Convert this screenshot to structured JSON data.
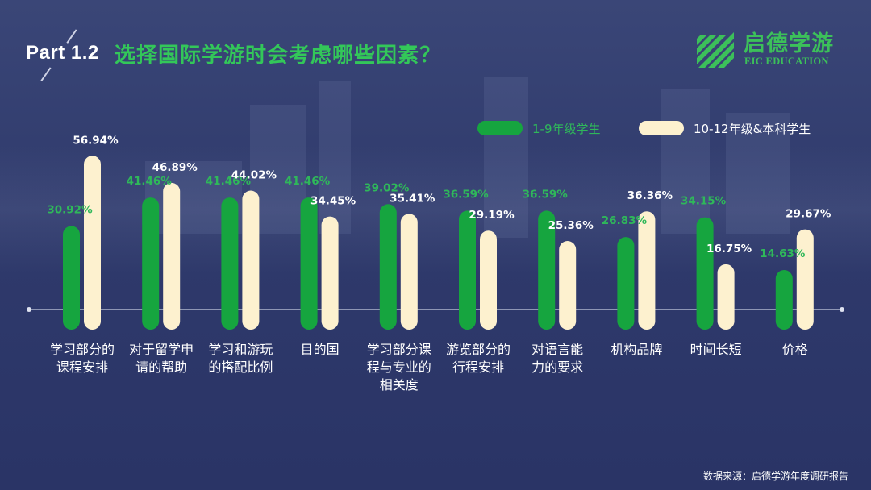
{
  "header": {
    "part": "Part 1.2",
    "title": "选择国际学游时会考虑哪些因素？"
  },
  "logo": {
    "name_cn": "启德学游",
    "name_en": "EIC EDUCATION",
    "icon": "eic-leaf-icon"
  },
  "colors": {
    "series1": "#16a53f",
    "series2": "#fdf1cf",
    "label1": "#2fb85a",
    "label2": "#ffffff",
    "title": "#33c759"
  },
  "legend": [
    {
      "label": "1-9年级学生"
    },
    {
      "label": "10-12年级&本科学生"
    }
  ],
  "chart_data": {
    "type": "bar",
    "title": "选择国际学游时会考虑哪些因素？",
    "categories": [
      "学习部分的课程安排",
      "对于留学申请的帮助",
      "学习和游玩的搭配比例",
      "目的国",
      "学习部分课程与专业的相关度",
      "游览部分的行程安排",
      "对语言能力的要求",
      "机构品牌",
      "时间长短",
      "价格"
    ],
    "category_lines": [
      [
        "学习部分的",
        "课程安排"
      ],
      [
        "对于留学申",
        "请的帮助"
      ],
      [
        "学习和游玩",
        "的搭配比例"
      ],
      [
        "目的国"
      ],
      [
        "学习部分课",
        "程与专业的",
        "相关度"
      ],
      [
        "游览部分的",
        "行程安排"
      ],
      [
        "对语言能",
        "力的要求"
      ],
      [
        "机构品牌"
      ],
      [
        "时间长短"
      ],
      [
        "价格"
      ]
    ],
    "series": [
      {
        "name": "1-9年级学生",
        "values": [
          30.92,
          41.46,
          41.46,
          41.46,
          39.02,
          36.59,
          36.59,
          26.83,
          34.15,
          14.63
        ],
        "labels": [
          "30.92%",
          "41.46%",
          "41.46%",
          "41.46%",
          "39.02%",
          "36.59%",
          "36.59%",
          "26.83%",
          "34.15%",
          "14.63%"
        ]
      },
      {
        "name": "10-12年级&本科学生",
        "values": [
          56.94,
          46.89,
          44.02,
          34.45,
          35.41,
          29.19,
          25.36,
          36.36,
          16.75,
          29.67
        ],
        "labels": [
          "56.94%",
          "46.89%",
          "44.02%",
          "34.45%",
          "35.41%",
          "29.19%",
          "25.36%",
          "36.36%",
          "16.75%",
          "29.67%"
        ]
      }
    ],
    "unit": "%",
    "grid": false,
    "legend_position": "top-right"
  },
  "footer": {
    "source": "数据来源：启德学游年度调研报告"
  }
}
